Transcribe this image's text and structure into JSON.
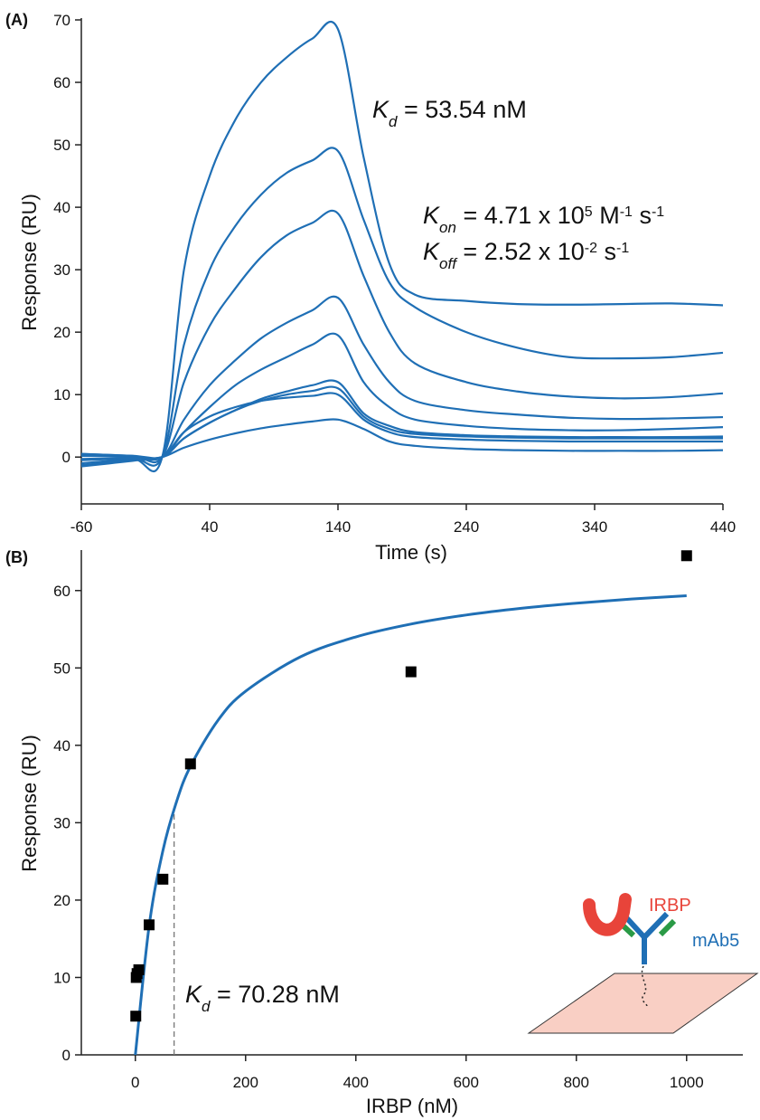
{
  "chart_data": [
    {
      "type": "line",
      "panel_label": "(A)",
      "x_label": "Time (s)",
      "y_label": "Response (RU)",
      "x": [
        -60,
        -20,
        3,
        20,
        40,
        60,
        80,
        100,
        120,
        140,
        160,
        180,
        200,
        240,
        280,
        320,
        360,
        400,
        440
      ],
      "series": [
        {
          "color": "#1f6fb5",
          "values": [
            -1.0,
            -0.3,
            0,
            30,
            45,
            54,
            60,
            64,
            67,
            68.5,
            48,
            31,
            26,
            25,
            24.5,
            24.4,
            24.5,
            24.6,
            24.3
          ]
        },
        {
          "color": "#1f6fb5",
          "values": [
            -0.5,
            -0.2,
            0,
            18,
            30,
            37,
            42,
            45.5,
            47.5,
            49,
            38,
            28,
            24,
            20,
            17.5,
            16,
            15.8,
            16,
            16.7
          ]
        },
        {
          "color": "#1f6fb5",
          "values": [
            0.5,
            0.2,
            0,
            12,
            21,
            27,
            32,
            35.5,
            37.5,
            39,
            29,
            20,
            15,
            12,
            10.5,
            9.7,
            9.4,
            9.6,
            10.2
          ]
        },
        {
          "color": "#1f6fb5",
          "values": [
            0.3,
            0.1,
            0,
            6,
            11.5,
            15.5,
            19,
            21.5,
            23.5,
            25.5,
            18,
            12,
            9,
            7.5,
            6.8,
            6.3,
            6.1,
            6.2,
            6.4
          ]
        },
        {
          "color": "#1f6fb5",
          "values": [
            0.2,
            0.1,
            0,
            4,
            8,
            11.5,
            14,
            16,
            18,
            19.5,
            12,
            8,
            6,
            5,
            4.5,
            4.3,
            4.3,
            4.5,
            4.8
          ]
        },
        {
          "color": "#1f6fb5",
          "values": [
            -0.3,
            -0.1,
            0,
            3,
            5.5,
            7.5,
            9.3,
            10.5,
            11.5,
            12,
            7,
            5,
            4,
            3.5,
            3.3,
            3.2,
            3.2,
            3.2,
            3.3
          ]
        },
        {
          "color": "#1f6fb5",
          "values": [
            0.5,
            0.2,
            0,
            3,
            5.5,
            7.5,
            9,
            10,
            10.6,
            11,
            6.5,
            4.5,
            3.7,
            3.3,
            3.1,
            3,
            3,
            3,
            3
          ]
        },
        {
          "color": "#1f6fb5",
          "values": [
            -1.3,
            -0.5,
            0,
            4,
            6.5,
            8,
            9,
            9.5,
            9.8,
            10,
            6,
            4,
            3.2,
            2.8,
            2.6,
            2.5,
            2.5,
            2.5,
            2.5
          ]
        },
        {
          "color": "#1f6fb5",
          "values": [
            -1.5,
            -0.6,
            0,
            1.5,
            2.8,
            3.8,
            4.6,
            5.2,
            5.7,
            6,
            4.5,
            2.5,
            1.8,
            1.3,
            1.1,
            1,
            1,
            1,
            1.1
          ]
        }
      ],
      "xlim": [
        -60,
        440
      ],
      "ylim": [
        -7.5,
        70
      ],
      "xticks": [
        -60,
        40,
        140,
        240,
        340,
        440
      ],
      "yticks": [
        0,
        10,
        20,
        30,
        40,
        50,
        60,
        70
      ],
      "annotations": [
        [
          {
            "text": "K",
            "style": "italic"
          },
          {
            "text": "d",
            "style": "italic-sub"
          },
          {
            "text": " = 53.54 nM",
            "style": "normal"
          }
        ],
        [
          {
            "text": "K",
            "style": "italic"
          },
          {
            "text": "on",
            "style": "italic-sub"
          },
          {
            "text": " = 4.71 x 10",
            "style": "normal"
          },
          {
            "text": "5",
            "style": "sup"
          },
          {
            "text": " M",
            "style": "normal"
          },
          {
            "text": "-1",
            "style": "sup"
          },
          {
            "text": " s",
            "style": "normal"
          },
          {
            "text": "-1",
            "style": "sup"
          }
        ],
        [
          {
            "text": "K",
            "style": "italic"
          },
          {
            "text": "off",
            "style": "italic-sub"
          },
          {
            "text": " = 2.52 x 10",
            "style": "normal"
          },
          {
            "text": "-2",
            "style": "sup"
          },
          {
            "text": " s",
            "style": "normal"
          },
          {
            "text": "-1",
            "style": "sup"
          }
        ]
      ]
    },
    {
      "type": "scatter",
      "panel_label": "(B)",
      "x_label": "IRBP (nM)",
      "y_label": "Response (RU)",
      "x": [
        1000,
        500,
        100,
        50,
        25,
        6.25,
        3.125,
        1.5625,
        0.78
      ],
      "values": [
        64.5,
        49.5,
        37.6,
        22.7,
        16.8,
        11,
        10.5,
        10,
        5
      ],
      "marker_color": "#000000",
      "fit": {
        "color": "#1f6fb5",
        "x": [
          0,
          25,
          50,
          75,
          100,
          150,
          200,
          300,
          400,
          500,
          600,
          700,
          800,
          900,
          1000
        ],
        "values": [
          0,
          16.66,
          26.4,
          32.78,
          37.29,
          43.24,
          46.99,
          51.45,
          54.01,
          55.67,
          56.84,
          57.71,
          58.37,
          58.9,
          59.33
        ]
      },
      "kd_marker": {
        "x": 70.28,
        "y": 31.75
      },
      "xlim": [
        -98,
        1102
      ],
      "ylim": [
        0,
        65
      ],
      "xticks": [
        0,
        200,
        400,
        600,
        800,
        1000
      ],
      "yticks": [
        0,
        10,
        20,
        30,
        40,
        50,
        60
      ],
      "annotations": [
        [
          {
            "text": "K",
            "style": "italic"
          },
          {
            "text": "d",
            "style": "italic-sub"
          },
          {
            "text": " = 70.28 nM",
            "style": "normal"
          }
        ]
      ],
      "inset_labels": {
        "protein": "IRBP",
        "antibody": "mAb5"
      }
    }
  ]
}
